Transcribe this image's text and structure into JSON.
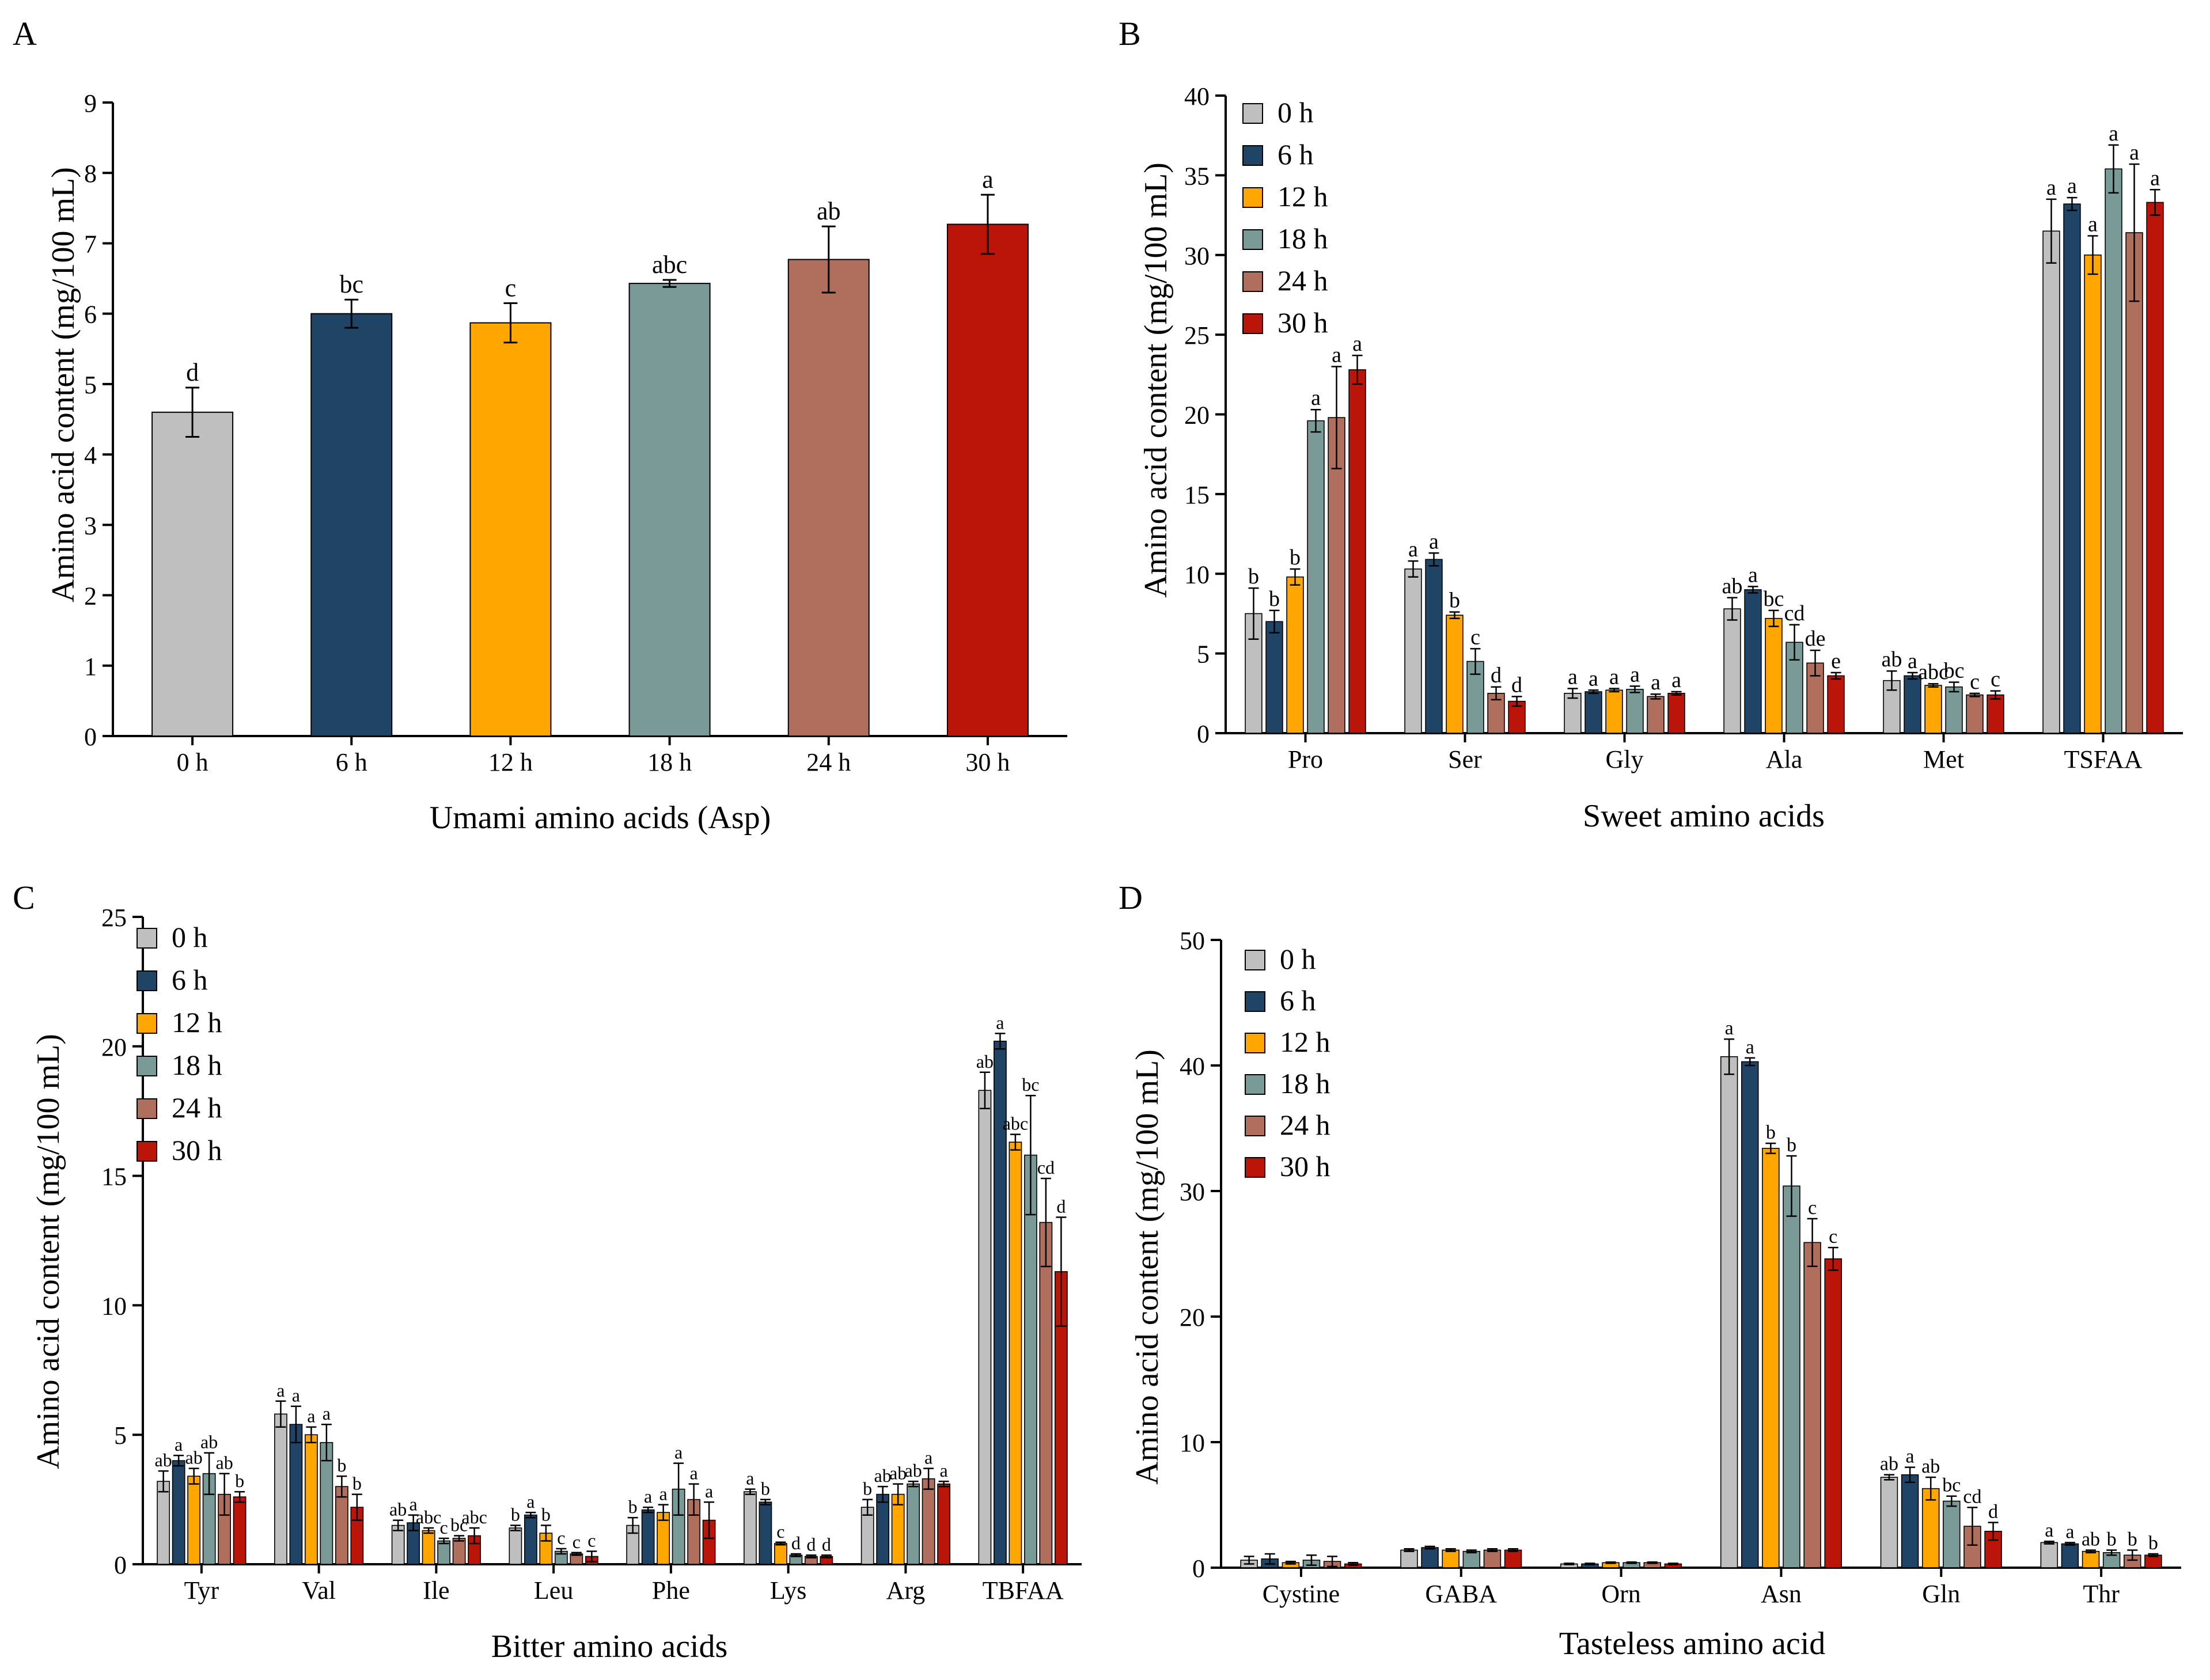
{
  "colors": {
    "0 h": "#bfbfbf",
    "6 h": "#1f4466",
    "12 h": "#ffa600",
    "18 h": "#7a9a98",
    "24 h": "#b06f5d",
    "30 h": "#bb1408"
  },
  "chart_data": [
    {
      "id": "A",
      "panel_letter": "A",
      "type": "bar",
      "title": "",
      "xlabel": "Umami amino acids (Asp)",
      "ylabel": "Amino acid content (mg/100 mL)",
      "ylim": [
        0,
        9
      ],
      "yticks": [
        0,
        1,
        2,
        3,
        4,
        5,
        6,
        7,
        8,
        9
      ],
      "categories": [
        "0 h",
        "6 h",
        "12 h",
        "18 h",
        "24 h",
        "30 h"
      ],
      "values": [
        4.6,
        6.0,
        5.87,
        6.43,
        6.77,
        7.27
      ],
      "errors": [
        0.35,
        0.2,
        0.28,
        0.05,
        0.47,
        0.42
      ],
      "sig": [
        "d",
        "bc",
        "c",
        "abc",
        "ab",
        "a"
      ],
      "legend": []
    },
    {
      "id": "B",
      "panel_letter": "B",
      "type": "bar",
      "title": "",
      "xlabel": "Sweet amino acids",
      "ylabel": "Amino acid content (mg/100 mL)",
      "ylim": [
        0,
        40
      ],
      "yticks": [
        0,
        5,
        10,
        15,
        20,
        25,
        30,
        35,
        40
      ],
      "categories": [
        "Pro",
        "Ser",
        "Gly",
        "Ala",
        "Met",
        "TSFAA"
      ],
      "series": [
        {
          "name": "0 h",
          "values": [
            7.5,
            10.3,
            2.5,
            7.8,
            3.3,
            31.5
          ],
          "errors": [
            1.6,
            0.5,
            0.3,
            0.7,
            0.6,
            2.0
          ],
          "sig": [
            "b",
            "a",
            "a",
            "ab",
            "ab",
            "a"
          ]
        },
        {
          "name": "6 h",
          "values": [
            7.0,
            10.9,
            2.6,
            9.0,
            3.6,
            33.2
          ],
          "errors": [
            0.7,
            0.4,
            0.1,
            0.2,
            0.2,
            0.4
          ],
          "sig": [
            "b",
            "a",
            "a",
            "a",
            "a",
            "a"
          ]
        },
        {
          "name": "12 h",
          "values": [
            9.8,
            7.4,
            2.7,
            7.2,
            3.0,
            30.0
          ],
          "errors": [
            0.5,
            0.2,
            0.1,
            0.5,
            0.1,
            1.2
          ],
          "sig": [
            "b",
            "b",
            "a",
            "bc",
            "abc",
            "a"
          ]
        },
        {
          "name": "18 h",
          "values": [
            19.6,
            4.5,
            2.75,
            5.7,
            2.9,
            35.4
          ],
          "errors": [
            0.7,
            0.8,
            0.2,
            1.1,
            0.3,
            1.5
          ],
          "sig": [
            "a",
            "c",
            "a",
            "cd",
            "bc",
            "a"
          ]
        },
        {
          "name": "24 h",
          "values": [
            19.8,
            2.5,
            2.3,
            4.4,
            2.4,
            31.4
          ],
          "errors": [
            3.2,
            0.4,
            0.15,
            0.8,
            0.1,
            4.3
          ],
          "sig": [
            "a",
            "d",
            "a",
            "de",
            "c",
            "a"
          ]
        },
        {
          "name": "30 h",
          "values": [
            22.8,
            2.0,
            2.5,
            3.6,
            2.4,
            33.3
          ],
          "errors": [
            0.9,
            0.3,
            0.1,
            0.2,
            0.25,
            0.8
          ],
          "sig": [
            "a",
            "d",
            "a",
            "e",
            "c",
            "a"
          ]
        }
      ],
      "legend": [
        "0 h",
        "6 h",
        "12 h",
        "18 h",
        "24 h",
        "30 h"
      ]
    },
    {
      "id": "C",
      "panel_letter": "C",
      "type": "bar",
      "title": "",
      "xlabel": "Bitter amino acids",
      "ylabel": "Amino acid content (mg/100 mL)",
      "ylim": [
        0,
        25
      ],
      "yticks": [
        0,
        5,
        10,
        15,
        20,
        25
      ],
      "categories": [
        "Tyr",
        "Val",
        "Ile",
        "Leu",
        "Phe",
        "Lys",
        "Arg",
        "TBFAA"
      ],
      "series": [
        {
          "name": "0 h",
          "values": [
            3.2,
            5.8,
            1.5,
            1.4,
            1.5,
            2.8,
            2.2,
            18.3
          ],
          "errors": [
            0.4,
            0.5,
            0.2,
            0.1,
            0.3,
            0.1,
            0.3,
            0.7
          ],
          "sig": [
            "ab",
            "a",
            "ab",
            "b",
            "b",
            "a",
            "b",
            "ab"
          ]
        },
        {
          "name": "6 h",
          "values": [
            4.0,
            5.4,
            1.6,
            1.9,
            2.1,
            2.4,
            2.7,
            20.2
          ],
          "errors": [
            0.2,
            0.7,
            0.3,
            0.1,
            0.1,
            0.1,
            0.3,
            0.3
          ],
          "sig": [
            "a",
            "a",
            "a",
            "a",
            "a",
            "b",
            "ab",
            "a"
          ]
        },
        {
          "name": "12 h",
          "values": [
            3.4,
            5.0,
            1.3,
            1.2,
            2.0,
            0.8,
            2.7,
            16.3
          ],
          "errors": [
            0.3,
            0.3,
            0.1,
            0.3,
            0.3,
            0.05,
            0.4,
            0.3
          ],
          "sig": [
            "ab",
            "a",
            "abc",
            "b",
            "a",
            "c",
            "ab",
            "abc"
          ]
        },
        {
          "name": "18 h",
          "values": [
            3.5,
            4.7,
            0.9,
            0.5,
            2.9,
            0.35,
            3.1,
            15.8
          ],
          "errors": [
            0.8,
            0.7,
            0.1,
            0.1,
            1.0,
            0.05,
            0.1,
            2.3
          ],
          "sig": [
            "ab",
            "a",
            "c",
            "c",
            "a",
            "d",
            "ab",
            "bc"
          ]
        },
        {
          "name": "24 h",
          "values": [
            2.7,
            3.0,
            1.0,
            0.4,
            2.5,
            0.3,
            3.3,
            13.2
          ],
          "errors": [
            0.8,
            0.4,
            0.1,
            0.05,
            0.6,
            0.05,
            0.4,
            1.7
          ],
          "sig": [
            "ab",
            "b",
            "bc",
            "c",
            "a",
            "d",
            "a",
            "cd"
          ]
        },
        {
          "name": "30 h",
          "values": [
            2.6,
            2.2,
            1.1,
            0.3,
            1.7,
            0.3,
            3.1,
            11.3
          ],
          "errors": [
            0.2,
            0.5,
            0.3,
            0.2,
            0.7,
            0.05,
            0.1,
            2.1
          ],
          "sig": [
            "b",
            "b",
            "abc",
            "c",
            "a",
            "d",
            "a",
            "d"
          ]
        }
      ],
      "legend": [
        "0 h",
        "6 h",
        "12 h",
        "18 h",
        "24 h",
        "30 h"
      ]
    },
    {
      "id": "D",
      "panel_letter": "D",
      "type": "bar",
      "title": "",
      "xlabel": "Tasteless amino acid",
      "ylabel": "Amino acid content (mg/100 mL)",
      "ylim": [
        0,
        50
      ],
      "yticks": [
        0,
        10,
        20,
        30,
        40,
        50
      ],
      "categories": [
        "Cystine",
        "GABA",
        "Orn",
        "Asn",
        "Gln",
        "Thr"
      ],
      "series": [
        {
          "name": "0 h",
          "values": [
            0.6,
            1.4,
            0.3,
            40.7,
            7.2,
            2.0
          ],
          "errors": [
            0.3,
            0.1,
            0.05,
            1.4,
            0.2,
            0.1
          ],
          "sig": [
            "",
            "",
            "",
            "a",
            "ab",
            "a"
          ]
        },
        {
          "name": "6 h",
          "values": [
            0.7,
            1.6,
            0.3,
            40.3,
            7.4,
            1.9
          ],
          "errors": [
            0.4,
            0.1,
            0.05,
            0.3,
            0.6,
            0.1
          ],
          "sig": [
            "",
            "",
            "",
            "a",
            "a",
            "a"
          ]
        },
        {
          "name": "12 h",
          "values": [
            0.4,
            1.4,
            0.4,
            33.4,
            6.3,
            1.3
          ],
          "errors": [
            0.1,
            0.1,
            0.05,
            0.4,
            0.9,
            0.1
          ],
          "sig": [
            "",
            "",
            "",
            "b",
            "ab",
            "ab"
          ]
        },
        {
          "name": "18 h",
          "values": [
            0.6,
            1.3,
            0.4,
            30.4,
            5.3,
            1.2
          ],
          "errors": [
            0.4,
            0.1,
            0.05,
            2.4,
            0.4,
            0.2
          ],
          "sig": [
            "",
            "",
            "",
            "b",
            "bc",
            "b"
          ]
        },
        {
          "name": "24 h",
          "values": [
            0.5,
            1.4,
            0.4,
            25.9,
            3.3,
            1.0
          ],
          "errors": [
            0.4,
            0.1,
            0.05,
            1.9,
            1.5,
            0.4
          ],
          "sig": [
            "",
            "",
            "",
            "c",
            "cd",
            "b"
          ]
        },
        {
          "name": "30 h",
          "values": [
            0.3,
            1.4,
            0.3,
            24.6,
            2.9,
            1.0
          ],
          "errors": [
            0.1,
            0.1,
            0.05,
            0.9,
            0.7,
            0.1
          ],
          "sig": [
            "",
            "",
            "",
            "c",
            "d",
            "b"
          ]
        }
      ],
      "legend": [
        "0 h",
        "6 h",
        "12 h",
        "18 h",
        "24 h",
        "30 h"
      ]
    }
  ]
}
